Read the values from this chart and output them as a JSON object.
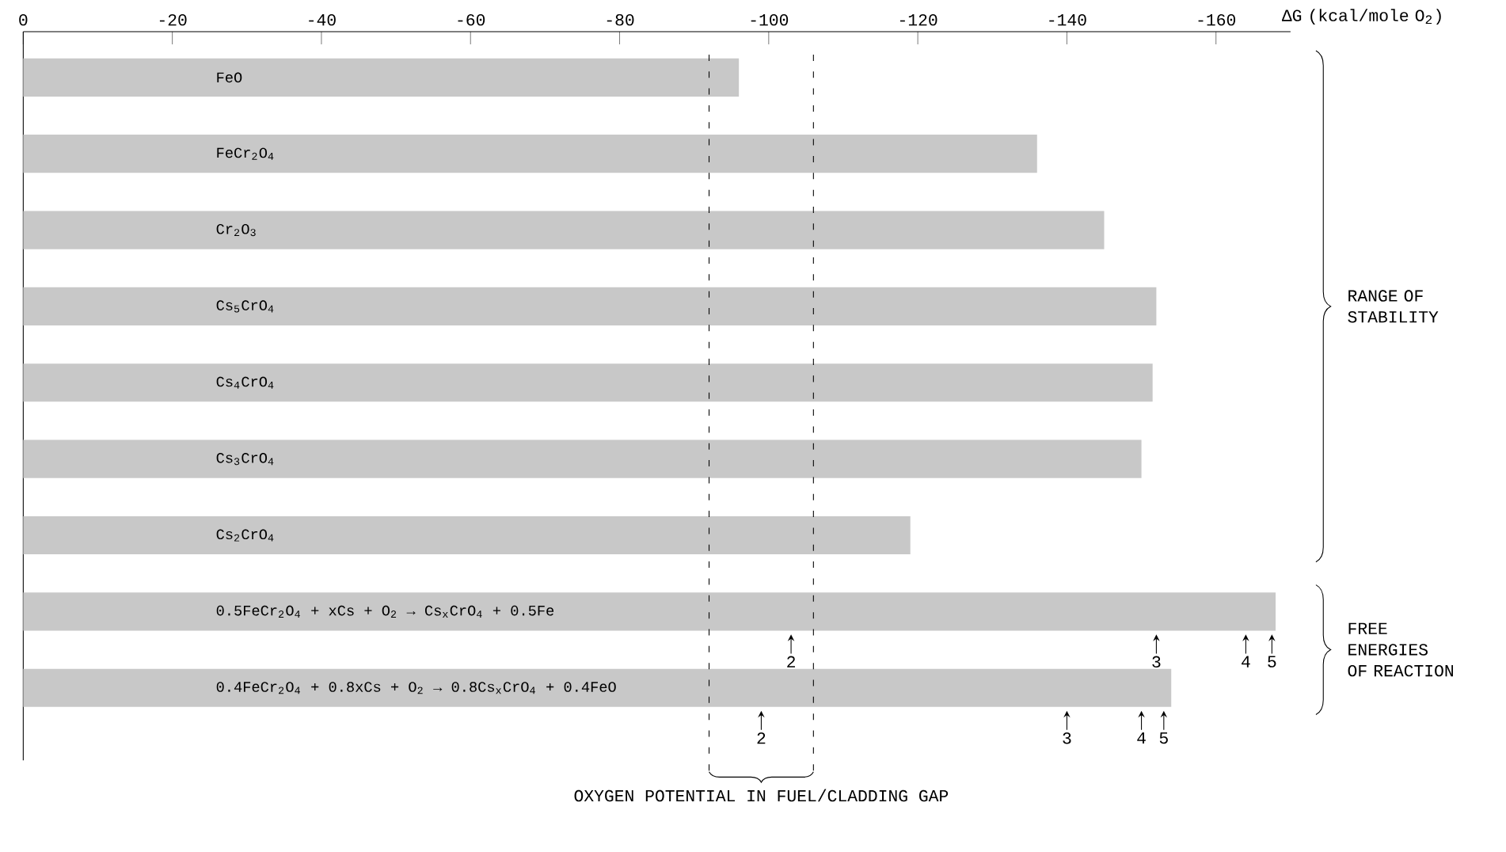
{
  "chart_data": {
    "type": "bar",
    "orientation": "horizontal",
    "xlabel": "ΔG (kcal/mole O$_{2}$)",
    "categories": [
      "FeO",
      "FeCr$_{2}$O$_{4}$",
      "Cr$_{2}$O$_{3}$",
      "Cs$_{5}$CrO$_{4}$",
      "Cs$_{4}$CrO$_{4}$",
      "Cs$_{3}$CrO$_{4}$",
      "Cs$_{2}$CrO$_{4}$",
      "0.5FeCr$_{2}$O$_{4}$ + xCs + O$_{2}$ → Cs$_{x}$CrO$_{4}$ + 0.5Fe",
      "0.4FeCr$_{2}$O$_{4}$ + 0.8xCs + O$_{2}$ → 0.8Cs$_{x}$CrO$_{4}$ + 0.4FeO"
    ],
    "series": [
      {
        "color": "#c8c8c8",
        "values": [
          -96,
          -136,
          -145,
          -152,
          -151.5,
          -150,
          -119,
          -168,
          -154
        ]
      },
      {
        "type": "scatter",
        "color": "#000000",
        "x": [
          "0.5FeCr$_{2}$O$_{4}$ + xCs + O$_{2}$ → Cs$_{x}$CrO$_{4}$ + 0.5Fe",
          "0.5FeCr$_{2}$O$_{4}$ + xCs + O$_{2}$ → Cs$_{x}$CrO$_{4}$ + 0.5Fe",
          "0.5FeCr$_{2}$O$_{4}$ + xCs + O$_{2}$ → Cs$_{x}$CrO$_{4}$ + 0.5Fe",
          "0.5FeCr$_{2}$O$_{4}$ + xCs + O$_{2}$ → Cs$_{x}$CrO$_{4}$ + 0.5Fe"
        ],
        "values": [
          -103,
          -152,
          -164,
          -167.5
        ]
      },
      {
        "type": "scatter",
        "color": "#000000",
        "x": [
          "0.4FeCr$_{2}$O$_{4}$ + 0.8xCs + O$_{2}$ → 0.8Cs$_{x}$CrO$_{4}$ + 0.4FeO",
          "0.4FeCr$_{2}$O$_{4}$ + 0.8xCs + O$_{2}$ → 0.8Cs$_{x}$CrO$_{4}$ + 0.4FeO",
          "0.4FeCr$_{2}$O$_{4}$ + 0.8xCs + O$_{2}$ → 0.8Cs$_{x}$CrO$_{4}$ + 0.4FeO",
          "0.4FeCr$_{2}$O$_{4}$ + 0.8xCs + O$_{2}$ → 0.8Cs$_{x}$CrO$_{4}$ + 0.4FeO"
        ],
        "values": [
          -99,
          -140,
          -150,
          -153
        ]
      }
    ],
    "xlim": [
      0,
      -170
    ],
    "xticks": [
      0,
      -20,
      -40,
      -60,
      -80,
      -100,
      -120,
      -140,
      -160
    ],
    "ref_lines": [
      {
        "axis": "x",
        "value": -92,
        "line_style": "dashed"
      },
      {
        "axis": "x",
        "value": -106,
        "line_style": "dashed"
      }
    ],
    "annotations": [
      "RANGE OF STABILITY",
      "FREE ENERGIES OF REACTION",
      "OXYGEN POTENTIAL IN FUEL/CLADDING GAP",
      {
        "text": "2",
        "x": -103,
        "y": "0.5FeCr$_{2}$O$_{4}$ + xCs + O$_{2}$ → Cs$_{x}$CrO$_{4}$ + 0.5Fe"
      },
      {
        "text": "3",
        "x": -152,
        "y": "0.5FeCr$_{2}$O$_{4}$ + xCs + O$_{2}$ → Cs$_{x}$CrO$_{4}$ + 0.5Fe"
      },
      {
        "text": "4",
        "x": -164,
        "y": "0.5FeCr$_{2}$O$_{4}$ + xCs + O$_{2}$ → Cs$_{x}$CrO$_{4}$ + 0.5Fe"
      },
      {
        "text": "5",
        "x": -167.5,
        "y": "0.5FeCr$_{2}$O$_{4}$ + xCs + O$_{2}$ → Cs$_{x}$CrO$_{4}$ + 0.5Fe"
      },
      {
        "text": "2",
        "x": -99,
        "y": "0.4FeCr$_{2}$O$_{4}$ + 0.8xCs + O$_{2}$ → 0.8Cs$_{x}$CrO$_{4}$ + 0.4FeO"
      },
      {
        "text": "3",
        "x": -140,
        "y": "0.4FeCr$_{2}$O$_{4}$ + 0.8xCs + O$_{2}$ → 0.8Cs$_{x}$CrO$_{4}$ + 0.4FeO"
      },
      {
        "text": "4",
        "x": -150,
        "y": "0.4FeCr$_{2}$O$_{4}$ + 0.8xCs + O$_{2}$ → 0.8Cs$_{x}$CrO$_{4}$ + 0.4FeO"
      },
      {
        "text": "5",
        "x": -153,
        "y": "0.4FeCr$_{2}$O$_{4}$ + 0.8xCs + O$_{2}$ → 0.8Cs$_{x}$CrO$_{4}$ + 0.4FeO"
      }
    ]
  }
}
